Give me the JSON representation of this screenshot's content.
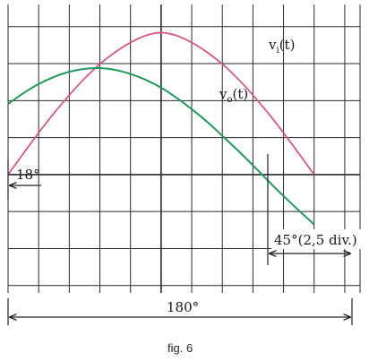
{
  "caption": "fig. 6",
  "chart_data": {
    "type": "line",
    "x_unit": "degrees",
    "x_per_division": 18,
    "xlim": [
      0,
      207
    ],
    "ylim": [
      -3.2,
      4.6
    ],
    "grid": true,
    "series": [
      {
        "label_main": "v",
        "label_sub": "i",
        "label_tail": "(t)",
        "color": "#d94f7a",
        "x": [
          0,
          9,
          18,
          27,
          36,
          45,
          54,
          63,
          72,
          81,
          90,
          99,
          108,
          117,
          126,
          135,
          144,
          153,
          162,
          171,
          180
        ],
        "y": [
          0,
          0.57,
          1.13,
          1.66,
          2.15,
          2.6,
          2.99,
          3.31,
          3.57,
          3.76,
          3.84,
          3.76,
          3.57,
          3.31,
          2.99,
          2.6,
          2.15,
          1.66,
          1.13,
          0.57,
          0
        ]
      },
      {
        "label_main": "v",
        "label_sub": "o",
        "label_tail": "(t)",
        "color": "#1f9a5a",
        "x": [
          0,
          9,
          18,
          27,
          36,
          45,
          54,
          63,
          72,
          81,
          90,
          99,
          108,
          117,
          126,
          135,
          144,
          153,
          162,
          171,
          180
        ],
        "y": [
          1.91,
          2.2,
          2.45,
          2.64,
          2.78,
          2.86,
          2.88,
          2.83,
          2.72,
          2.56,
          2.35,
          2.08,
          1.77,
          1.43,
          1.05,
          0.66,
          0.25,
          -0.17,
          -0.58,
          -0.97,
          -1.35
        ]
      }
    ],
    "annotations": {
      "phase_shift": "18°",
      "quarter": "45°(2,5 div.)",
      "half_period": "180°"
    }
  }
}
